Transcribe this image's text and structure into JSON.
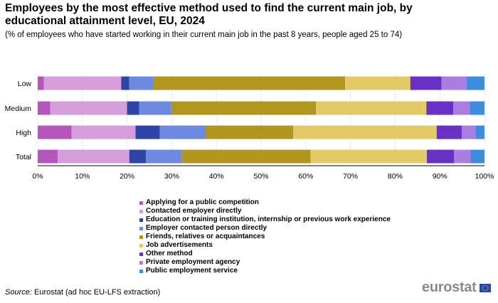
{
  "title": "Employees by the most effective method used to find the current main job, by educational attainment level, EU, 2024",
  "subtitle": "(% of employees who have started working in their current main job in the past 8 years, people aged 25 to 74)",
  "source_label": "Source:",
  "source_text": "Eurostat (ad hoc EU-LFS extraction)",
  "logo_text": "eurostat",
  "colors": {
    "Applying for a public competition": "#b656bd",
    "Contacted employer directly": "#d59edb",
    "Education or training institution, internship or previous work experience": "#2e44a6",
    "Employer contacted person directly": "#6f88e0",
    "Friends, relatives or acquaintances": "#b0951f",
    "Job advertisements": "#e3c967",
    "Other method": "#6930c5",
    "Private employment agency": "#aa7ee0",
    "Public employment service": "#3d8cde"
  },
  "chart_data": {
    "type": "bar",
    "orientation": "horizontal",
    "stacked": true,
    "title": "Employees by the most effective method used to find the current main job, by educational attainment level, EU, 2024",
    "subtitle": "(% of employees who have started working in their current main job in the past 8 years, people aged 25 to 74)",
    "categories": [
      "Low",
      "Medium",
      "High",
      "Total"
    ],
    "xlim": [
      0,
      100
    ],
    "x_ticks": [
      "0%",
      "10%",
      "20%",
      "30%",
      "40%",
      "50%",
      "60%",
      "70%",
      "80%",
      "90%",
      "100%"
    ],
    "grid": "vertical",
    "legend_position": "bottom",
    "series": [
      {
        "name": "Applying for a public competition",
        "values": [
          1.4,
          2.8,
          7.6,
          4.5
        ]
      },
      {
        "name": "Contacted employer directly",
        "values": [
          17.3,
          17.2,
          14.3,
          16.0
        ]
      },
      {
        "name": "Education or training institution, internship or previous work experience",
        "values": [
          1.8,
          2.7,
          5.4,
          3.7
        ]
      },
      {
        "name": "Employer contacted person directly",
        "values": [
          5.3,
          7.2,
          10.2,
          8.1
        ]
      },
      {
        "name": "Friends, relatives or acquaintances",
        "values": [
          43.0,
          32.4,
          19.7,
          28.8
        ]
      },
      {
        "name": "Job advertisements",
        "values": [
          14.6,
          24.7,
          32.1,
          26.0
        ]
      },
      {
        "name": "Other method",
        "values": [
          7.0,
          6.0,
          5.6,
          6.1
        ]
      },
      {
        "name": "Private employment agency",
        "values": [
          5.6,
          3.7,
          3.1,
          3.7
        ]
      },
      {
        "name": "Public employment service",
        "values": [
          4.0,
          3.3,
          2.0,
          3.1
        ]
      }
    ]
  }
}
